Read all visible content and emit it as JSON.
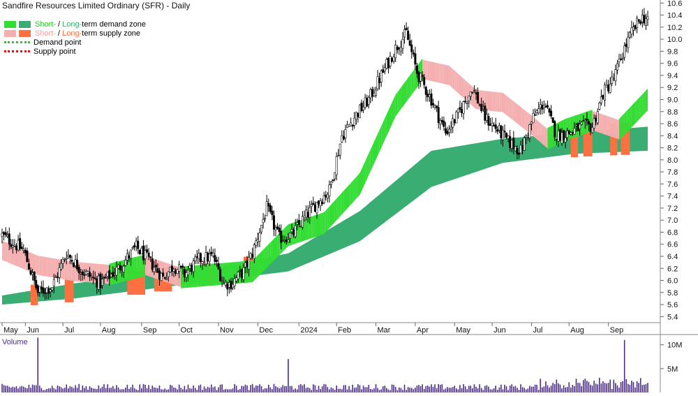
{
  "title": "Sandfire Resources Limited Ordinary (SFR) - Daily",
  "legend": {
    "demand_short": "Short-",
    "demand_sep": " / ",
    "demand_long": "Long-",
    "demand_rest": "term demand zone",
    "supply_short": "Short-",
    "supply_sep": " / ",
    "supply_long": "Long-",
    "supply_rest": "term supply zone",
    "demand_point": "Demand point",
    "supply_point": "Supply point"
  },
  "volume_label": "Volume",
  "colors": {
    "short_demand": "#33dd33",
    "long_demand": "#3aae72",
    "short_supply": "#f4b0b0",
    "long_supply": "#ff7040",
    "demand_point": "#22cc22",
    "supply_point": "#dd1111",
    "volume_bar": "#4b2a8a",
    "grid": "#cccccc"
  },
  "chart_data": {
    "type": "candlestick",
    "title": "Sandfire Resources Limited Ordinary (SFR) - Daily",
    "y_ticks": [
      "10.6",
      "10.4",
      "10.2",
      "10.0",
      "9.8",
      "9.6",
      "9.4",
      "9.2",
      "9.0",
      "8.8",
      "8.6",
      "8.4",
      "8.2",
      "8.0",
      "7.8",
      "7.6",
      "7.4",
      "7.2",
      "7.0",
      "6.8",
      "6.6",
      "6.4",
      "6.2",
      "6.0",
      "5.8",
      "5.6",
      "5.4"
    ],
    "ylim": [
      5.3,
      10.65
    ],
    "x_ticks": [
      "May",
      "Jun",
      "Jul",
      "Aug",
      "Sep",
      "Oct",
      "Nov",
      "Dec",
      "2024",
      "Feb",
      "Mar",
      "Apr",
      "May",
      "Jun",
      "Jul",
      "Aug",
      "Sep"
    ],
    "volume_ticks": [
      "10M",
      "5M"
    ],
    "volume_ylim": [
      0,
      12
    ],
    "price_path": {
      "description_free": true,
      "day_index": [
        0,
        12,
        20,
        28,
        36,
        45,
        55,
        65,
        75,
        83,
        90,
        96,
        102,
        110,
        118,
        124,
        128,
        135,
        140,
        148,
        155,
        162,
        168,
        175,
        183,
        190,
        198,
        205,
        212,
        220,
        226,
        232,
        240,
        248,
        255,
        263,
        270,
        277,
        283,
        290,
        297,
        303,
        310,
        317,
        324,
        330,
        336,
        342,
        348,
        352,
        357,
        361
      ],
      "close": [
        6.75,
        6.5,
        5.8,
        5.9,
        6.45,
        6.15,
        5.95,
        6.2,
        6.55,
        6.3,
        6.05,
        6.25,
        6.1,
        6.35,
        6.4,
        5.95,
        5.95,
        6.15,
        6.45,
        7.2,
        6.7,
        6.75,
        7.0,
        7.25,
        7.5,
        8.4,
        8.75,
        9.0,
        9.4,
        9.85,
        10.1,
        9.45,
        9.0,
        8.45,
        8.75,
        9.2,
        8.7,
        8.5,
        8.3,
        8.15,
        8.7,
        8.95,
        8.4,
        8.45,
        8.55,
        8.55,
        9.1,
        9.35,
        9.85,
        10.1,
        10.35,
        10.35
      ]
    },
    "short_term_mean": {
      "day_index": [
        0,
        20,
        40,
        60,
        80,
        100,
        120,
        140,
        160,
        180,
        200,
        220,
        235,
        250,
        265,
        280,
        295,
        305,
        315,
        330,
        345,
        361
      ],
      "value": [
        6.5,
        6.25,
        6.15,
        6.1,
        6.25,
        6.05,
        6.1,
        6.15,
        6.75,
        6.95,
        7.6,
        8.9,
        9.5,
        9.4,
        9.0,
        8.95,
        8.6,
        8.35,
        8.5,
        8.65,
        8.5,
        9.0
      ]
    },
    "long_term_band": {
      "day_index": [
        0,
        40,
        80,
        120,
        160,
        200,
        240,
        280,
        320,
        361
      ],
      "lower": [
        5.6,
        5.7,
        5.85,
        6.0,
        6.15,
        6.65,
        7.55,
        7.95,
        8.1,
        8.15
      ],
      "upper": [
        5.75,
        5.95,
        6.1,
        6.2,
        6.45,
        7.15,
        8.15,
        8.35,
        8.45,
        8.55
      ]
    },
    "volume_millions_avg": 1.0,
    "volume_spikes_millions": [
      {
        "day": 20,
        "value": 11.5
      },
      {
        "day": 160,
        "value": 7
      },
      {
        "day": 348,
        "value": 11
      }
    ]
  }
}
